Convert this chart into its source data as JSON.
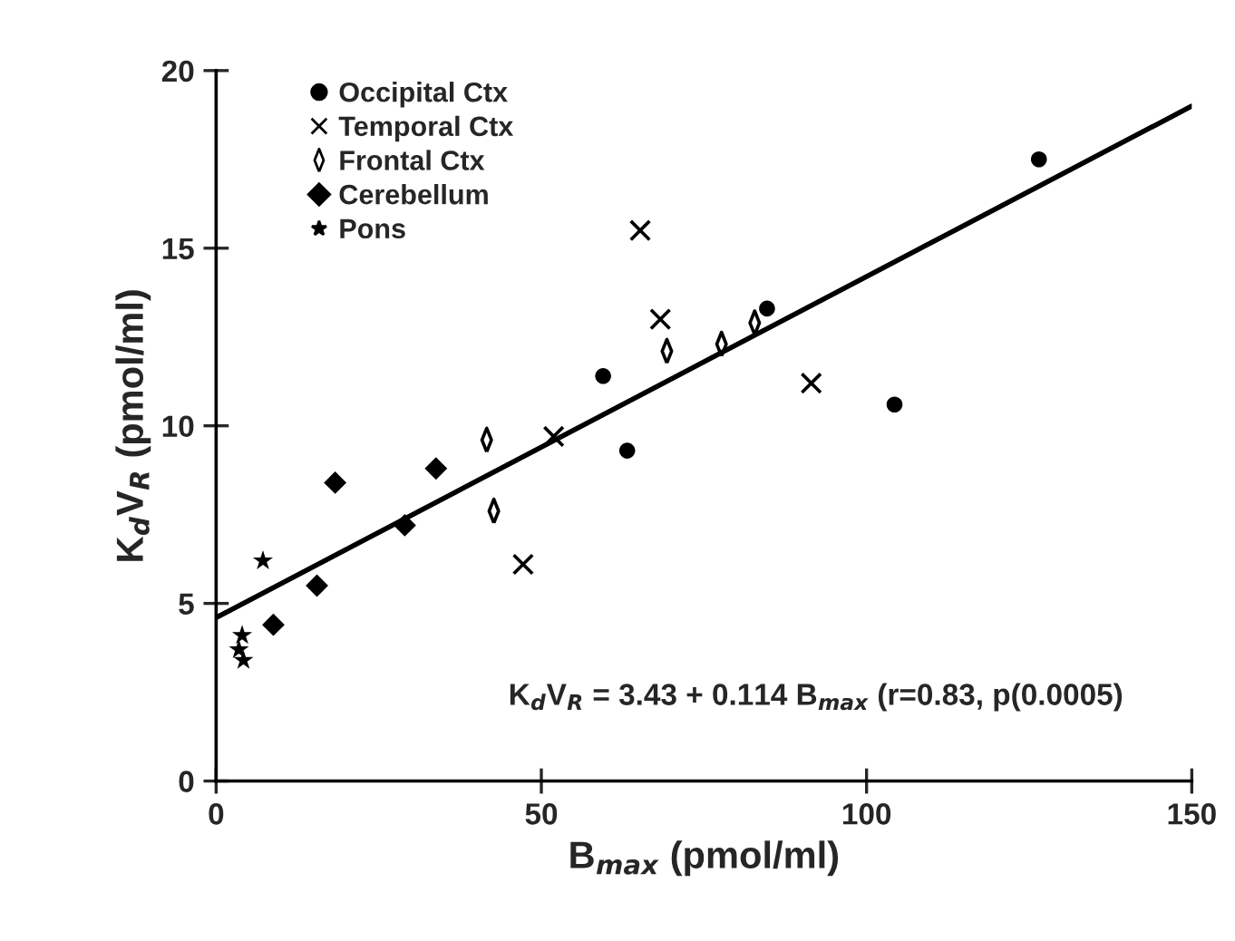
{
  "chart_data": {
    "type": "scatter",
    "xlabel": "B$_{max}$ (pmol/ml)",
    "ylabel": "K$_{d}$V$_{R}$ (pmol/ml)",
    "xlim": [
      0,
      150
    ],
    "xticks": [
      0,
      50,
      100,
      150
    ],
    "ylim": [
      0,
      20
    ],
    "yticks": [
      0,
      5,
      10,
      15,
      20
    ],
    "grid": false,
    "legend": "top left",
    "annotations": [
      "K$_{d}$V$_{R}$ = 3.43 + 0.114 B$_{max}$ (r=0.83, p(0.0005)"
    ],
    "series": [
      {
        "name": "Occipital Ctx",
        "color": "#000000",
        "marker": "circle",
        "x": [
          59.5,
          63.2,
          84.7,
          104.3,
          126.5
        ],
        "values": [
          11.4,
          9.3,
          13.3,
          10.6,
          17.5
        ]
      },
      {
        "name": "Temporal Ctx",
        "color": "#000000",
        "marker": "cross",
        "x": [
          65.2,
          68.3,
          51.9,
          47.2,
          91.5
        ],
        "values": [
          15.5,
          13.0,
          9.7,
          6.1,
          11.2
        ]
      },
      {
        "name": "Frontal Ctx",
        "color": "#000000",
        "marker": "diamond",
        "x": [
          69.3,
          77.7,
          82.8,
          41.6,
          42.7
        ],
        "values": [
          12.1,
          12.3,
          12.9,
          9.6,
          7.6
        ]
      },
      {
        "name": "Cerebellum",
        "color": "#000000",
        "marker": "diamond",
        "x": [
          18.3,
          33.8,
          29.0,
          15.5,
          8.8
        ],
        "values": [
          8.4,
          8.8,
          7.2,
          5.5,
          4.4
        ]
      },
      {
        "name": "Pons",
        "color": "#000000",
        "marker": "star",
        "x": [
          7.2,
          4.0,
          3.5,
          4.2
        ],
        "values": [
          6.2,
          4.1,
          3.7,
          3.4
        ]
      },
      {
        "type": "line",
        "color": "#000000",
        "marker": "none",
        "line_style": "solid",
        "x": [
          0,
          150
        ],
        "values": [
          4.6,
          19.0
        ]
      }
    ]
  }
}
